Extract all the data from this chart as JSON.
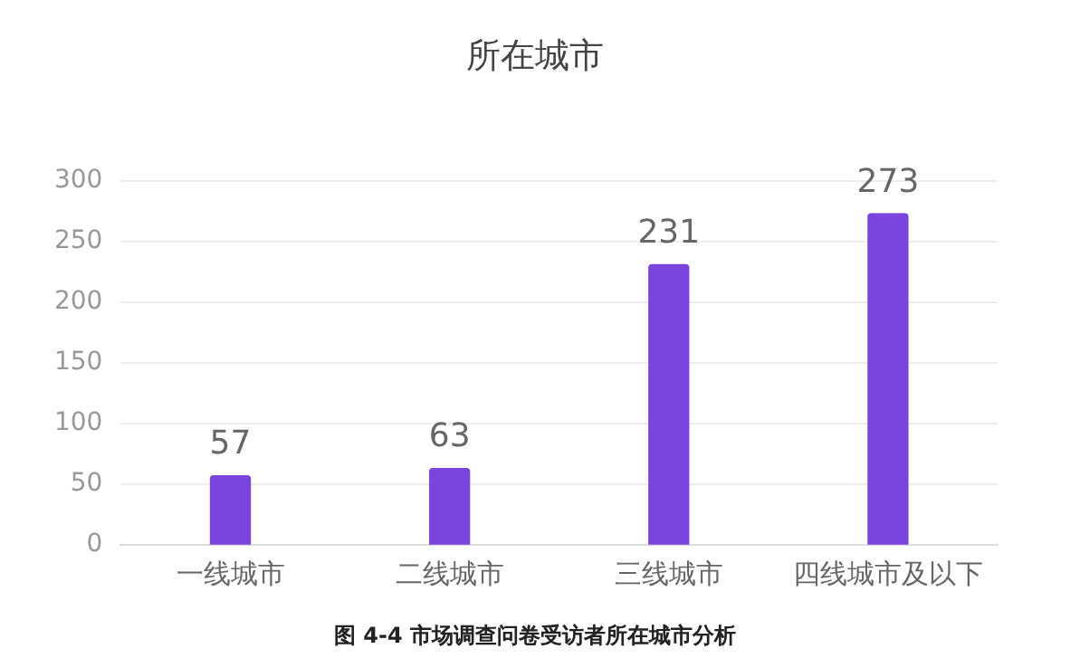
{
  "chart_data": {
    "type": "bar",
    "title": "所在城市",
    "categories": [
      "一线城市",
      "二线城市",
      "三线城市",
      "四线城市及以下"
    ],
    "values": [
      57,
      63,
      231,
      273
    ],
    "color": "#7a45dc",
    "ylim": [
      0,
      300
    ],
    "yticks": [
      0,
      50,
      100,
      150,
      200,
      250,
      300
    ],
    "grid": "y",
    "data_labels": true,
    "annotations": [
      "图 4-4  市场调查问卷受访者所在城市分析"
    ]
  }
}
